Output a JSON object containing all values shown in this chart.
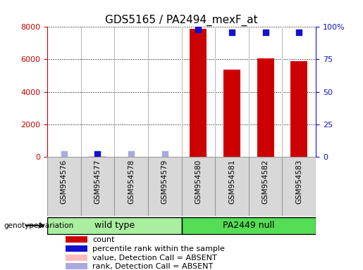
{
  "title": "GDS5165 / PA2494_mexF_at",
  "samples": [
    "GSM954576",
    "GSM954577",
    "GSM954578",
    "GSM954579",
    "GSM954580",
    "GSM954581",
    "GSM954582",
    "GSM954583"
  ],
  "count_values": [
    0,
    50,
    0,
    0,
    7900,
    5350,
    6050,
    5900
  ],
  "percentile_values": [
    2,
    2,
    2,
    2,
    98,
    96,
    96,
    96
  ],
  "absent_count": [
    null,
    50,
    null,
    null,
    null,
    null,
    null,
    null
  ],
  "absent_rank": [
    2,
    null,
    2,
    2,
    null,
    null,
    null,
    null
  ],
  "wild_type_count": [
    4
  ],
  "pa2449_null_count": [
    4
  ],
  "left_ylim": [
    0,
    8000
  ],
  "left_yticks": [
    0,
    2000,
    4000,
    6000,
    8000
  ],
  "right_ylim": [
    0,
    100
  ],
  "right_yticks": [
    0,
    25,
    50,
    75,
    100
  ],
  "right_yticklabels": [
    "0",
    "25",
    "50",
    "75",
    "100%"
  ],
  "bar_color": "#cc0000",
  "dot_color": "#1111cc",
  "absent_bar_color": "#ffbbbb",
  "absent_dot_color": "#aaaadd",
  "wt_bg": "#aaeea0",
  "pa_bg": "#55dd55",
  "col_bg": "#d8d8d8",
  "plot_bg": "white",
  "legend_items": [
    "count",
    "percentile rank within the sample",
    "value, Detection Call = ABSENT",
    "rank, Detection Call = ABSENT"
  ],
  "legend_colors": [
    "#cc0000",
    "#1111cc",
    "#ffbbbb",
    "#aaaadd"
  ]
}
